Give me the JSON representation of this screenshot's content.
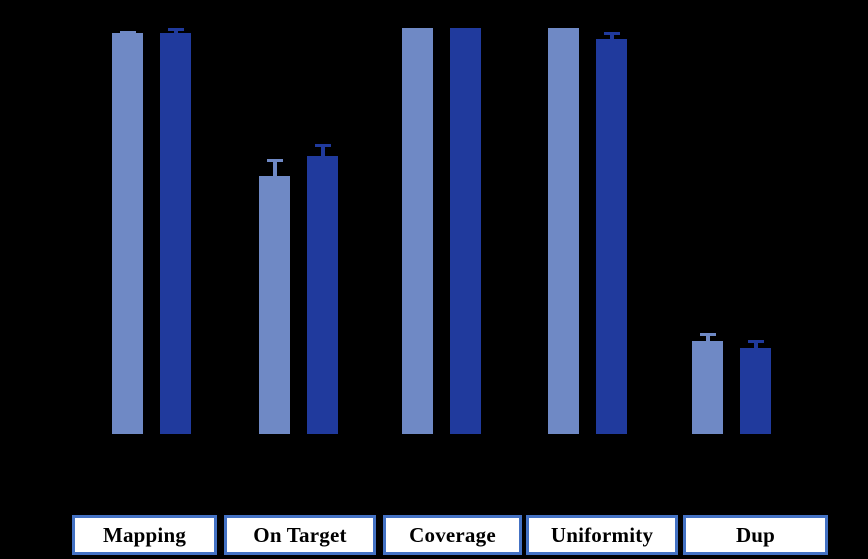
{
  "chart_data": {
    "type": "bar",
    "title": "",
    "categories": [
      "Mapping",
      "On Target",
      "Coverage",
      "Uniformity",
      "Dup"
    ],
    "series": [
      {
        "name": "series-1-light-blue",
        "color": "#6F89C5",
        "values": [
          98.8,
          63.5,
          100,
          100,
          22.9
        ],
        "errors": [
          0.5,
          4.1,
          0,
          0,
          2.0
        ]
      },
      {
        "name": "series-2-dark-blue",
        "color": "#203A9D",
        "values": [
          98.8,
          68.4,
          100,
          97.3,
          21.2
        ],
        "errors": [
          1.2,
          3.0,
          0,
          1.7,
          1.9
        ]
      }
    ],
    "ylim": [
      0,
      100
    ],
    "grid": false,
    "legend": "none",
    "axes_visible": false,
    "background_color": "#000000",
    "category_box_fill": "#FFFFFF",
    "category_box_border": "#4472C4",
    "category_text_color": "#000000"
  }
}
